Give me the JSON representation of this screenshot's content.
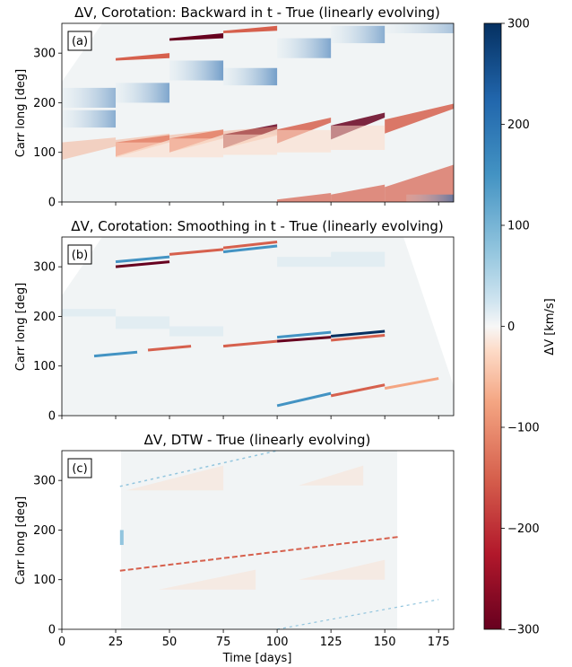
{
  "colors": {
    "deep_red": "#67001f",
    "red": "#d6604d",
    "light_red": "#f4a582",
    "pale_red": "#fddbc7",
    "neutral": "#f1f4f5",
    "pale_blue": "#d1e5f0",
    "light_blue": "#92c5de",
    "blue": "#4393c3",
    "deep_blue": "#053061"
  },
  "chart_data": [
    {
      "type": "heatmap",
      "panel_label": "(a)",
      "title": "ΔV, Corotation: Backward in t - True (linearly evolving)",
      "ylabel": "Carr long [deg]",
      "xlabel": "",
      "xlim": [
        0,
        182
      ],
      "ylim": [
        0,
        360
      ],
      "yticks": [
        0,
        100,
        200,
        300
      ],
      "xticks": [
        0,
        25,
        50,
        75,
        100,
        125,
        150,
        175
      ],
      "show_xtick_labels": false,
      "data_region": {
        "t0_lo": 0,
        "t0_hi": 25,
        "t1_lo": 182,
        "t1_hi": 182,
        "lo_at_t0": 0,
        "hi_at_t0": 240,
        "lo_at_t1": 0,
        "hi_at_t1": 360
      },
      "features": [
        {
          "t0": 25,
          "t1": 50,
          "lat_lo": 0,
          "lat_hi": 0,
          "dv": -100
        },
        {
          "t0": 50,
          "t1": 75,
          "lat_lo": 0,
          "lat_hi": 0,
          "dv": -100
        },
        {
          "t0": 75,
          "t1": 100,
          "lat_lo": 0,
          "lat_hi": 0,
          "dv": -100
        },
        {
          "t0": 100,
          "t1": 125,
          "lat_lo": 0,
          "lat_hi": 0,
          "dv": -250
        },
        {
          "t0": 125,
          "t1": 150,
          "lat_lo": 0,
          "lat_hi": 0,
          "dv": -200
        },
        {
          "t0": 150,
          "t1": 175,
          "lat_lo": 0,
          "lat_hi": 0,
          "dv": -150
        },
        {
          "t0": 175,
          "t1": 182,
          "lat_lo": 0,
          "lat_hi": 0,
          "dv": -100
        }
      ],
      "bands_red": [
        {
          "t_start": 0,
          "t_end": 182,
          "lon_start": 110,
          "lon_end": 200,
          "peak_dv": -280
        },
        {
          "t_start": 25,
          "t_end": 50,
          "lon_start": 285,
          "lon_end": 290,
          "peak_dv": -250
        },
        {
          "t_start": 50,
          "t_end": 100,
          "lon_start": 325,
          "lon_end": 355,
          "peak_dv": -220
        },
        {
          "t_start": 100,
          "t_end": 182,
          "lon_start": 0,
          "lon_end": 70,
          "peak_dv": -180
        }
      ],
      "bands_blue": [
        {
          "t_start": 0,
          "t_end": 25,
          "lon_start": 150,
          "lon_end": 235,
          "peak_dv": 150
        },
        {
          "t_start": 25,
          "t_end": 182,
          "lon_start": 235,
          "lon_end": 360,
          "peak_dv": 180
        },
        {
          "t_start": 160,
          "t_end": 182,
          "lon_start": 0,
          "lon_end": 20,
          "peak_dv": 150
        }
      ]
    },
    {
      "type": "heatmap",
      "panel_label": "(b)",
      "title": "ΔV, Corotation: Smoothing in t - True (linearly evolving)",
      "ylabel": "Carr long [deg]",
      "xlabel": "",
      "xlim": [
        0,
        182
      ],
      "ylim": [
        0,
        360
      ],
      "yticks": [
        0,
        100,
        200,
        300
      ],
      "xticks": [
        0,
        25,
        50,
        75,
        100,
        125,
        150,
        175
      ],
      "show_xtick_labels": false,
      "data_region": {
        "t0_lo": 0,
        "t0_hi": 25,
        "t1_lo": 182,
        "t1_hi": 150,
        "lo_at_t0": 0,
        "hi_at_t0": 240,
        "lo_at_t1": 0,
        "hi_at_t1": 360
      }
    },
    {
      "type": "heatmap",
      "panel_label": "(c)",
      "title": "ΔV, DTW - True (linearly evolving)",
      "ylabel": "Carr long [deg]",
      "xlabel": "Time [days]",
      "xlim": [
        0,
        182
      ],
      "ylim": [
        0,
        360
      ],
      "yticks": [
        0,
        100,
        200,
        300
      ],
      "xticks": [
        0,
        25,
        50,
        75,
        100,
        125,
        150,
        175
      ],
      "show_xtick_labels": true,
      "data_region": {
        "t0_lo": 27,
        "t0_hi": 27,
        "t1_lo": 156,
        "t1_hi": 156,
        "lo_at_t0": 0,
        "hi_at_t0": 360,
        "lo_at_t1": 0,
        "hi_at_t1": 360
      }
    }
  ],
  "colorbar": {
    "label": "ΔV [km/s]",
    "min": -300,
    "max": 300,
    "ticks": [
      -300,
      -200,
      -100,
      0,
      100,
      200,
      300
    ],
    "tick_labels": [
      "−300",
      "−200",
      "−100",
      "0",
      "100",
      "200",
      "300"
    ]
  }
}
